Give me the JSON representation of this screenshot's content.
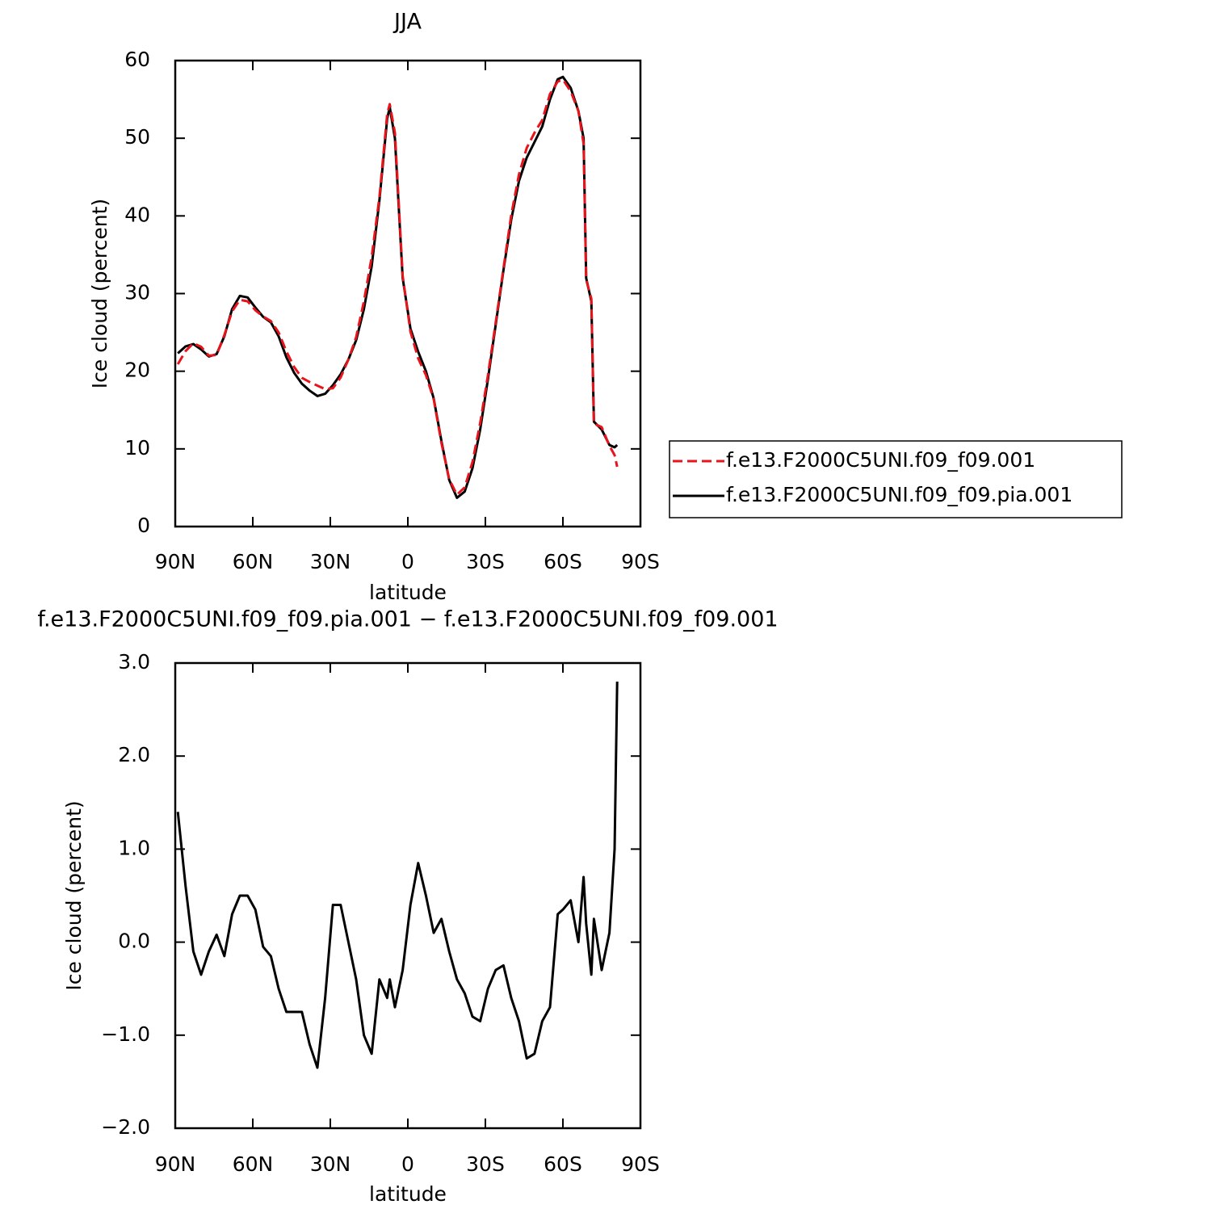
{
  "chart_data": [
    {
      "type": "line",
      "title": "JJA",
      "x_label": "latitude",
      "y_label": "Ice cloud (percent)",
      "x": [
        89,
        86,
        83,
        80,
        77,
        74,
        71,
        68,
        65,
        62,
        59,
        56,
        53,
        50,
        47,
        44,
        41,
        38,
        35,
        32,
        29,
        26,
        23,
        20,
        17,
        14,
        11,
        8,
        7,
        5,
        2,
        -1,
        -4,
        -7,
        -10,
        -13,
        -16,
        -19,
        -22,
        -25,
        -28,
        -31,
        -34,
        -37,
        -40,
        -43,
        -46,
        -49,
        -52,
        -55,
        -58,
        -60,
        -63,
        -66,
        -68,
        -69,
        -71,
        -72,
        -75,
        -78,
        -80,
        -81
      ],
      "series": [
        {
          "name": "f.e13.F2000C5UNI.f09_f09.001",
          "color": "#e8141c",
          "dash": true,
          "values": [
            20.9,
            22.6,
            23.6,
            23.15,
            22.0,
            22.1,
            24.65,
            27.7,
            29.2,
            29.0,
            27.85,
            27.05,
            26.45,
            25.0,
            22.55,
            20.55,
            19.15,
            18.6,
            18.15,
            17.7,
            17.8,
            19.2,
            21.5,
            24.4,
            29.0,
            34.7,
            42.4,
            53.1,
            54.4,
            50.7,
            32.3,
            25.1,
            21.65,
            19.5,
            16.4,
            10.75,
            6.1,
            4.1,
            5.05,
            8.3,
            13.35,
            19.5,
            26.3,
            33.25,
            40.1,
            45.35,
            48.75,
            50.7,
            52.35,
            55.7,
            57.3,
            57.55,
            56.05,
            53.5,
            49.3,
            31.8,
            29.35,
            13.25,
            12.8,
            10.4,
            9.2,
            7.7
          ]
        },
        {
          "name": "f.e13.F2000C5UNI.f09_f09.pia.001",
          "color": "#000000",
          "dash": false,
          "values": [
            22.3,
            23.2,
            23.5,
            22.8,
            21.9,
            22.2,
            24.5,
            28,
            29.7,
            29.5,
            28.2,
            27,
            26.3,
            24.5,
            21.8,
            19.8,
            18.4,
            17.5,
            16.8,
            17.1,
            18.2,
            19.6,
            21.5,
            24,
            28,
            33.5,
            42,
            52.5,
            54,
            50,
            32,
            25.5,
            22.5,
            20,
            16.5,
            11,
            6,
            3.7,
            4.5,
            7.5,
            12.5,
            19,
            26,
            33,
            39.5,
            44.5,
            47.5,
            49.5,
            51.5,
            55,
            57.6,
            57.9,
            56.5,
            53.5,
            50,
            32,
            29,
            13.5,
            12.5,
            10.5,
            10.2,
            10.5
          ]
        }
      ],
      "xlim": [
        90,
        -90
      ],
      "xticks": [
        {
          "value": 90,
          "label": "90N"
        },
        {
          "value": 60,
          "label": "60N"
        },
        {
          "value": 30,
          "label": "30N"
        },
        0,
        {
          "value": -30,
          "label": "30S"
        },
        {
          "value": -60,
          "label": "60S"
        },
        {
          "value": -90,
          "label": "90S"
        }
      ],
      "ylim": [
        0,
        60
      ],
      "yticks": [
        0,
        10,
        20,
        30,
        40,
        50,
        60
      ],
      "legend": "right"
    },
    {
      "type": "line",
      "title": "f.e13.F2000C5UNI.f09_f09.pia.001 − f.e13.F2000C5UNI.f09_f09.001",
      "x_label": "latitude",
      "y_label": "Ice cloud (percent)",
      "x": [
        89,
        86,
        83,
        80,
        77,
        74,
        71,
        68,
        65,
        62,
        59,
        56,
        53,
        50,
        47,
        44,
        41,
        38,
        35,
        32,
        29,
        26,
        23,
        20,
        17,
        14,
        11,
        8,
        7,
        5,
        2,
        -1,
        -4,
        -7,
        -10,
        -13,
        -16,
        -19,
        -22,
        -25,
        -28,
        -31,
        -34,
        -37,
        -40,
        -43,
        -46,
        -49,
        -52,
        -55,
        -58,
        -60,
        -63,
        -66,
        -68,
        -69,
        -71,
        -72,
        -75,
        -78,
        -80,
        -81
      ],
      "color": "#000000",
      "values": [
        1.4,
        0.6,
        -0.1,
        -0.35,
        -0.1,
        0.08,
        -0.15,
        0.3,
        0.5,
        0.5,
        0.35,
        -0.05,
        -0.15,
        -0.5,
        -0.75,
        -0.75,
        -0.75,
        -1.1,
        -1.35,
        -0.6,
        0.4,
        0.4,
        0.0,
        -0.4,
        -1.0,
        -1.2,
        -0.4,
        -0.6,
        -0.4,
        -0.7,
        -0.3,
        0.4,
        0.85,
        0.5,
        0.1,
        0.25,
        -0.1,
        -0.4,
        -0.55,
        -0.8,
        -0.85,
        -0.5,
        -0.3,
        -0.25,
        -0.6,
        -0.85,
        -1.25,
        -1.2,
        -0.85,
        -0.7,
        0.3,
        0.35,
        0.45,
        0.0,
        0.7,
        0.2,
        -0.35,
        0.25,
        -0.3,
        0.1,
        1.0,
        2.8
      ],
      "xlim": [
        90,
        -90
      ],
      "xticks": [
        {
          "value": 90,
          "label": "90N"
        },
        {
          "value": 60,
          "label": "60N"
        },
        {
          "value": 30,
          "label": "30N"
        },
        0,
        {
          "value": -30,
          "label": "30S"
        },
        {
          "value": -60,
          "label": "60S"
        },
        {
          "value": -90,
          "label": "90S"
        }
      ],
      "ylim": [
        -2,
        3
      ],
      "yticks": [
        {
          "value": -2,
          "label": "−2.0"
        },
        {
          "value": -1,
          "label": "−1.0"
        },
        {
          "value": 0,
          "label": "0.0"
        },
        {
          "value": 1,
          "label": "1.0"
        },
        {
          "value": 2,
          "label": "2.0"
        },
        {
          "value": 3,
          "label": "3.0"
        }
      ]
    }
  ]
}
